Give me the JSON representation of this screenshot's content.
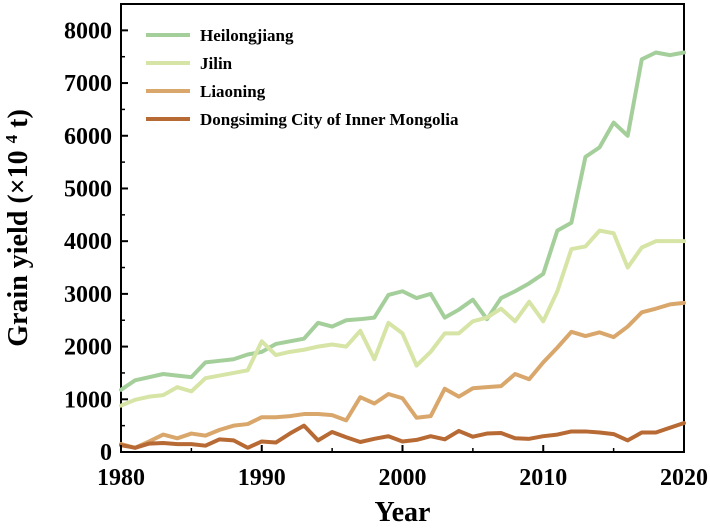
{
  "chart_data": {
    "type": "line",
    "title": "",
    "xlabel": "Year",
    "ylabel": "Grain yield",
    "ylabel_unit": "(×10",
    "ylabel_exp": "4",
    "ylabel_suffix": " t)",
    "xlim": [
      1980,
      2020
    ],
    "ylim": [
      0,
      8500
    ],
    "xticks": [
      1980,
      1990,
      2000,
      2010,
      2020
    ],
    "yticks": [
      0,
      1000,
      2000,
      3000,
      4000,
      5000,
      6000,
      7000,
      8000
    ],
    "grid": false,
    "legend_position": "top-left",
    "x": [
      1980,
      1981,
      1982,
      1983,
      1984,
      1985,
      1986,
      1987,
      1988,
      1989,
      1990,
      1991,
      1992,
      1993,
      1994,
      1995,
      1996,
      1997,
      1998,
      1999,
      2000,
      2001,
      2002,
      2003,
      2004,
      2005,
      2006,
      2007,
      2008,
      2009,
      2010,
      2011,
      2012,
      2013,
      2014,
      2015,
      2016,
      2017,
      2018,
      2019,
      2020
    ],
    "series": [
      {
        "name": "Heilongjiang",
        "color": "#a4cf9b",
        "values": [
          1180,
          1360,
          1420,
          1480,
          1450,
          1420,
          1700,
          1730,
          1760,
          1850,
          1900,
          2050,
          2100,
          2150,
          2450,
          2380,
          2500,
          2520,
          2550,
          2980,
          3050,
          2920,
          3000,
          2550,
          2700,
          2890,
          2520,
          2920,
          3050,
          3200,
          3380,
          4200,
          4350,
          5600,
          5780,
          6250,
          6000,
          7450,
          7580,
          7530,
          7580
        ]
      },
      {
        "name": "Jilin",
        "color": "#d6e4a6",
        "values": [
          880,
          990,
          1050,
          1080,
          1230,
          1150,
          1400,
          1450,
          1500,
          1550,
          2100,
          1840,
          1900,
          1940,
          2000,
          2040,
          2000,
          2300,
          1760,
          2450,
          2250,
          1640,
          1900,
          2250,
          2250,
          2480,
          2550,
          2720,
          2480,
          2850,
          2480,
          3050,
          3850,
          3900,
          4200,
          4150,
          3500,
          3880,
          4000,
          4000,
          4000
        ]
      },
      {
        "name": "Liaoning",
        "color": "#d9a76b",
        "values": [
          150,
          80,
          200,
          330,
          260,
          350,
          310,
          420,
          500,
          530,
          660,
          660,
          680,
          720,
          720,
          700,
          600,
          1040,
          920,
          1100,
          1020,
          650,
          680,
          1200,
          1050,
          1210,
          1230,
          1250,
          1480,
          1380,
          1700,
          1980,
          2280,
          2200,
          2270,
          2180,
          2380,
          2650,
          2720,
          2800,
          2830
        ]
      },
      {
        "name": "Dongsiming City of Inner Mongolia",
        "color": "#b86a35",
        "values": [
          130,
          80,
          160,
          170,
          150,
          150,
          120,
          240,
          220,
          80,
          200,
          180,
          350,
          500,
          220,
          380,
          280,
          190,
          250,
          300,
          200,
          230,
          300,
          240,
          400,
          290,
          350,
          360,
          260,
          250,
          300,
          330,
          390,
          390,
          370,
          340,
          220,
          370,
          370,
          460,
          550
        ]
      }
    ]
  }
}
